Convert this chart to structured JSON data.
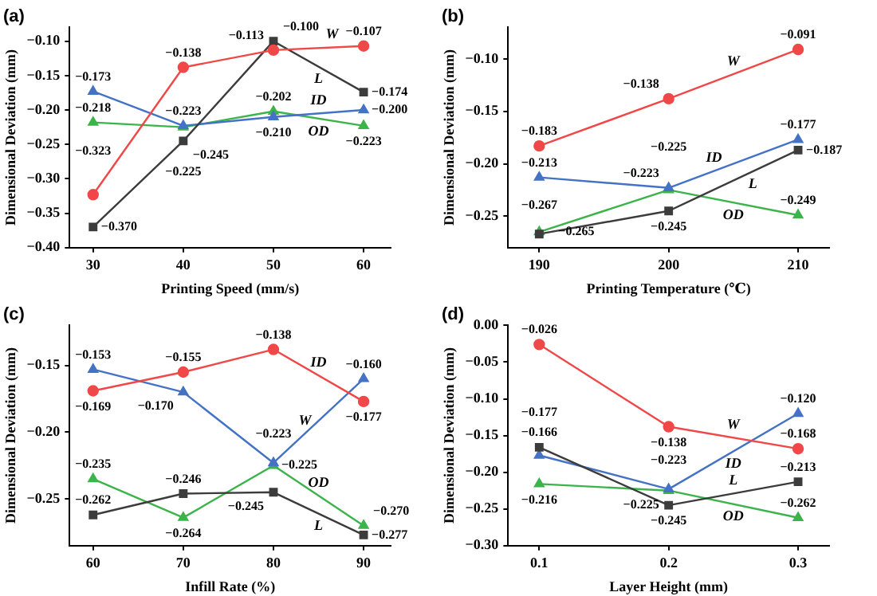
{
  "chart_data": [
    {
      "type": "line",
      "title": "(a)",
      "xlabel": "Printing Speed (mm/s)",
      "ylabel": "Dimensional Deviation (mm)",
      "x": [
        30,
        40,
        50,
        60
      ],
      "xlim": [
        27.4,
        63
      ],
      "xticks": [
        30,
        40,
        50,
        60
      ],
      "ylim": [
        -0.4,
        -0.08
      ],
      "yticks": [
        {
          "value": -0.4,
          "label": "−0.40"
        },
        {
          "value": -0.35,
          "label": "−0.35"
        },
        {
          "value": -0.3,
          "label": "−0.30"
        },
        {
          "value": -0.25,
          "label": "−0.25"
        },
        {
          "value": -0.2,
          "label": "−0.20"
        },
        {
          "value": -0.15,
          "label": "−0.15"
        },
        {
          "value": -0.1,
          "label": "−0.10"
        }
      ],
      "grid": false,
      "legend": false,
      "series": [
        {
          "name": "W",
          "color": "#f04848",
          "marker": "circle",
          "values": [
            -0.323,
            -0.138,
            -0.113,
            -0.107
          ],
          "value_labels": [
            "−0.323",
            "−0.138",
            "−0.113",
            "−0.107"
          ]
        },
        {
          "name": "L",
          "color": "#3c3c3c",
          "marker": "square",
          "values": [
            -0.37,
            -0.245,
            -0.1,
            -0.174
          ],
          "value_labels": [
            "−0.370",
            "−0.245",
            "−0.100",
            "−0.174"
          ]
        },
        {
          "name": "ID",
          "color": "#4472c4",
          "marker": "triangle",
          "values": [
            -0.173,
            -0.223,
            -0.21,
            -0.2
          ],
          "value_labels": [
            "−0.173",
            "−0.223",
            "−0.210",
            "−0.200"
          ]
        },
        {
          "name": "OD",
          "color": "#3cb44b",
          "marker": "triangle",
          "values": [
            -0.218,
            -0.225,
            -0.202,
            -0.223
          ],
          "value_labels": [
            "−0.218",
            "−0.225",
            "−0.202",
            "−0.223"
          ]
        }
      ]
    },
    {
      "type": "line",
      "title": "(b)",
      "xlabel": "Printing Temperature (℃)",
      "ylabel": "Dimensional Deviation (mm)",
      "x": [
        190,
        200,
        210
      ],
      "xlim": [
        187.6,
        212.4
      ],
      "xticks": [
        190,
        200,
        210
      ],
      "ylim": [
        -0.28,
        -0.07
      ],
      "yticks": [
        {
          "value": -0.25,
          "label": "−0.25"
        },
        {
          "value": -0.2,
          "label": "−0.20"
        },
        {
          "value": -0.15,
          "label": "−0.15"
        },
        {
          "value": -0.1,
          "label": "−0.10"
        }
      ],
      "grid": false,
      "legend": false,
      "series": [
        {
          "name": "W",
          "color": "#f04848",
          "marker": "circle",
          "values": [
            -0.183,
            -0.138,
            -0.091
          ],
          "value_labels": [
            "−0.183",
            "−0.138",
            "−0.091"
          ]
        },
        {
          "name": "L",
          "color": "#3c3c3c",
          "marker": "square",
          "values": [
            -0.267,
            -0.245,
            -0.187
          ],
          "value_labels": [
            "−0.267",
            "−0.245",
            "−0.187"
          ]
        },
        {
          "name": "ID",
          "color": "#4472c4",
          "marker": "triangle",
          "values": [
            -0.213,
            -0.223,
            -0.177
          ],
          "value_labels": [
            "−0.213",
            "−0.223",
            "−0.177"
          ]
        },
        {
          "name": "OD",
          "color": "#3cb44b",
          "marker": "triangle",
          "values": [
            -0.265,
            -0.225,
            -0.249
          ],
          "value_labels": [
            "−0.265",
            "−0.225",
            "−0.249"
          ]
        }
      ]
    },
    {
      "type": "line",
      "title": "(c)",
      "xlabel": "Infill Rate (%)",
      "ylabel": "Dimensional Deviation (mm)",
      "x": [
        60,
        70,
        80,
        90
      ],
      "xlim": [
        57.4,
        93
      ],
      "xticks": [
        60,
        70,
        80,
        90
      ],
      "ylim": [
        -0.285,
        -0.12
      ],
      "yticks": [
        {
          "value": -0.25,
          "label": "−0.25"
        },
        {
          "value": -0.2,
          "label": "−0.20"
        },
        {
          "value": -0.15,
          "label": "−0.15"
        }
      ],
      "grid": false,
      "legend": false,
      "series": [
        {
          "name": "ID",
          "color": "#f04848",
          "marker": "circle",
          "values": [
            -0.169,
            -0.155,
            -0.138,
            -0.177
          ],
          "value_labels": [
            "−0.169",
            "−0.155",
            "−0.138",
            "−0.177"
          ]
        },
        {
          "name": "L",
          "color": "#3c3c3c",
          "marker": "square",
          "values": [
            -0.262,
            -0.246,
            -0.245,
            -0.277
          ],
          "value_labels": [
            "−0.262",
            "−0.246",
            "−0.245",
            "−0.277"
          ]
        },
        {
          "name": "W",
          "color": "#4472c4",
          "marker": "triangle",
          "values": [
            -0.153,
            -0.17,
            -0.223,
            -0.16
          ],
          "value_labels": [
            "−0.153",
            "−0.170",
            "−0.223",
            "−0.160"
          ]
        },
        {
          "name": "OD",
          "color": "#3cb44b",
          "marker": "triangle",
          "values": [
            -0.235,
            -0.264,
            -0.225,
            -0.27
          ],
          "value_labels": [
            "−0.235",
            "−0.264",
            "−0.225",
            "−0.270"
          ]
        }
      ]
    },
    {
      "type": "line",
      "title": "(d)",
      "xlabel": "Layer Height (mm)",
      "ylabel": "Dimensional Deviation (mm)",
      "x": [
        0.1,
        0.2,
        0.3
      ],
      "xlim": [
        0.076,
        0.324
      ],
      "xticks": [
        0.1,
        0.2,
        0.3
      ],
      "ylim": [
        -0.3,
        0
      ],
      "yticks": [
        {
          "value": -0.3,
          "label": "−0.30"
        },
        {
          "value": -0.25,
          "label": "−0.25"
        },
        {
          "value": -0.2,
          "label": "−0.20"
        },
        {
          "value": -0.15,
          "label": "−0.15"
        },
        {
          "value": -0.1,
          "label": "−0.10"
        },
        {
          "value": -0.05,
          "label": "−0.05"
        },
        {
          "value": 0,
          "label": "0.00"
        }
      ],
      "grid": false,
      "legend": false,
      "series": [
        {
          "name": "W",
          "color": "#f04848",
          "marker": "circle",
          "values": [
            -0.026,
            -0.138,
            -0.168
          ],
          "value_labels": [
            "−0.026",
            "−0.138",
            "−0.168"
          ]
        },
        {
          "name": "L",
          "color": "#3c3c3c",
          "marker": "square",
          "values": [
            -0.166,
            -0.245,
            -0.213
          ],
          "value_labels": [
            "−0.166",
            "−0.245",
            "−0.213"
          ]
        },
        {
          "name": "ID",
          "color": "#4472c4",
          "marker": "triangle",
          "values": [
            -0.177,
            -0.223,
            -0.12
          ],
          "value_labels": [
            "−0.177",
            "−0.223",
            "−0.120"
          ]
        },
        {
          "name": "OD",
          "color": "#3cb44b",
          "marker": "triangle",
          "values": [
            -0.216,
            -0.225,
            -0.262
          ],
          "value_labels": [
            "−0.216",
            "−0.225",
            "−0.262"
          ]
        }
      ]
    }
  ]
}
